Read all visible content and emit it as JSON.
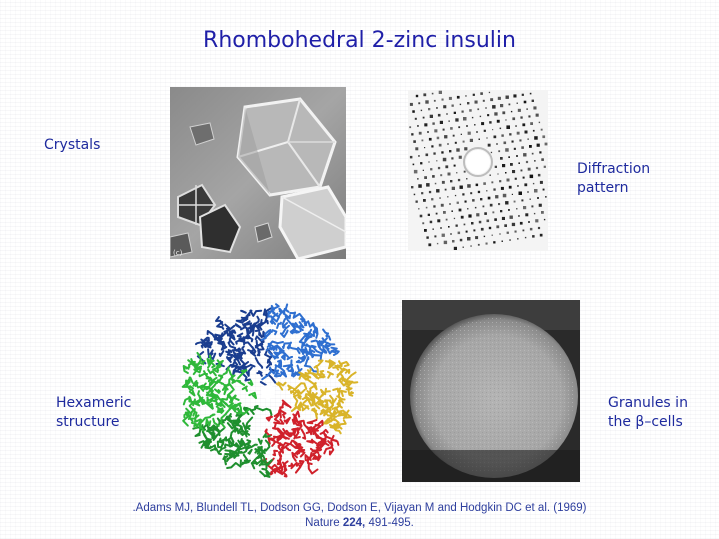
{
  "title": "Rhombohedral 2-zinc insulin",
  "labels": {
    "crystals": "Crystals",
    "diffraction_line1": "Diffraction",
    "diffraction_line2": "pattern",
    "hexameric_line1": "Hexameric",
    "hexameric_line2": "structure",
    "granules_line1": "Granules in",
    "granules_line2": "the β–cells"
  },
  "crystal_photo_mark": "(c)",
  "citation": {
    "line1": ".Adams MJ, Blundell TL, Dodson GG, Dodson E, Vijayan M and Hodgkin DC et al. (1969)",
    "journal": "Nature",
    "volume": "224,",
    "pages": "491-495."
  },
  "colors": {
    "title": "#1f1fa8",
    "labels": "#1e2a9e",
    "citation": "#2e3f9e",
    "hexamer_subunits": [
      "#1a3d8f",
      "#2e6fd0",
      "#d9b42a",
      "#d0212b",
      "#1f8f2e",
      "#2fb83a"
    ]
  }
}
